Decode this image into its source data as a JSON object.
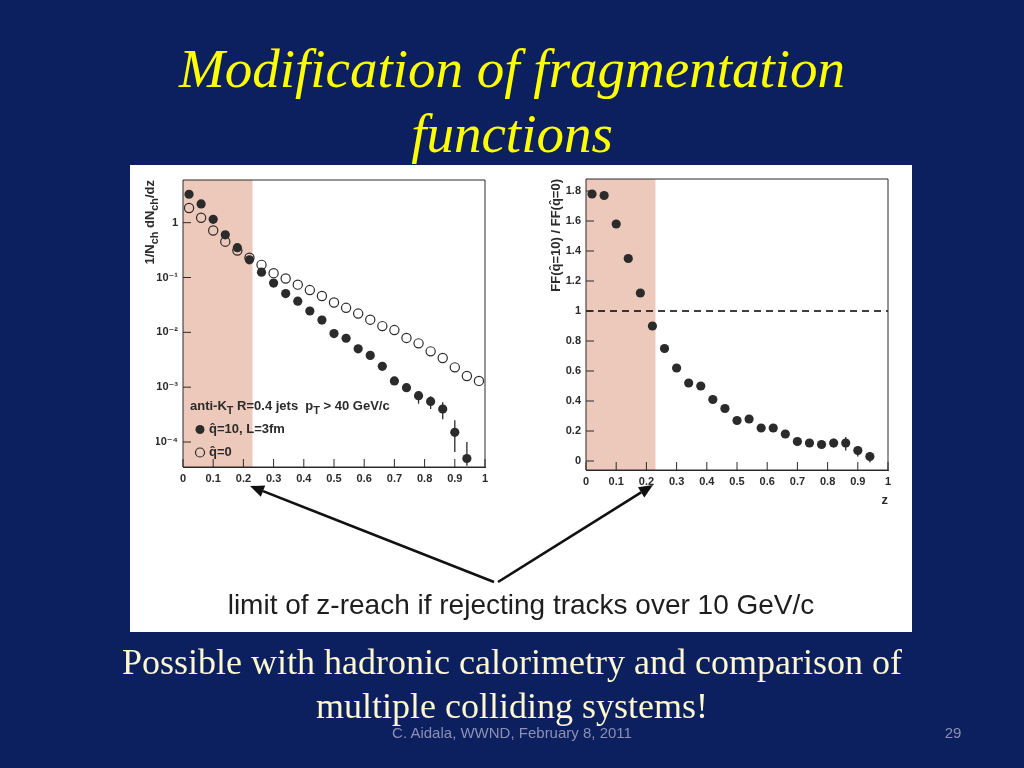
{
  "chart_data": [
    {
      "type": "scatter",
      "title": "Modification of fragmentation functions",
      "ylabel": "1/N$_{ch}$ dN$_{ch}$/dz",
      "legend_title": "anti-K$_{T}$ R=0.4 jets  p$_{T}$ > 40 GeV/c",
      "x": [
        0.02,
        0.06,
        0.1,
        0.14,
        0.18,
        0.22,
        0.26,
        0.3,
        0.34,
        0.38,
        0.42,
        0.46,
        0.5,
        0.54,
        0.58,
        0.62,
        0.66,
        0.7,
        0.74,
        0.78,
        0.82,
        0.86,
        0.9,
        0.94,
        0.98
      ],
      "series": [
        {
          "name": "q̂=10, L=3fm",
          "color": "#2b2b2b",
          "values": [
            3.3,
            2.2,
            1.15,
            0.6,
            0.35,
            0.21,
            0.125,
            0.079,
            0.051,
            0.037,
            0.0245,
            0.0167,
            0.0095,
            0.0078,
            0.005,
            0.0038,
            0.0024,
            0.0013,
            0.00098,
            0.0007,
            0.00055,
            0.0004,
            0.00015,
            5e-05,
            null
          ],
          "errors": [
            null,
            null,
            null,
            null,
            null,
            null,
            null,
            null,
            null,
            null,
            null,
            null,
            null,
            null,
            null,
            null,
            null,
            null,
            null,
            [
              0.0005,
              0.00083
            ],
            [
              0.0004,
              0.00068
            ],
            [
              0.00026,
              0.00053
            ],
            [
              6.6e-05,
              0.00025
            ],
            [
              3.7e-05,
              0.0001
            ],
            null
          ]
        },
        {
          "name": "q̂=0",
          "color": "#2b2b2b",
          "values": [
            1.85,
            1.23,
            0.72,
            0.45,
            0.31,
            0.23,
            0.17,
            0.12,
            0.096,
            0.074,
            0.059,
            0.046,
            0.035,
            0.028,
            0.022,
            0.017,
            0.013,
            0.011,
            0.0079,
            0.0063,
            0.0045,
            0.0034,
            0.0023,
            0.0016,
            0.0013
          ]
        }
      ],
      "xlim": [
        0,
        1
      ],
      "ylim": [
        3.5e-05,
        6
      ],
      "xticks": [
        0,
        0.1,
        0.2,
        0.3,
        0.4,
        0.5,
        0.6,
        0.7,
        0.8,
        0.9,
        1
      ],
      "yticks": [
        {
          "value": 0.0001,
          "label": "10⁻⁴"
        },
        {
          "value": 0.001,
          "label": "10⁻³"
        },
        {
          "value": 0.01,
          "label": "10⁻²"
        },
        {
          "value": 0.1,
          "label": "10⁻¹"
        },
        1
      ],
      "log": true,
      "legend": "bottom left",
      "marker": "circle",
      "bands": [
        {
          "axis": "x",
          "from": 0,
          "to": 0.23,
          "color": "#ecc9bb"
        }
      ],
      "annotations": [
        "limit of z-reach if rejecting tracks over 10 GeV/c",
        "Possible with hadronic calorimetry and comparison of multiple colliding systems!",
        "C. Aidala, WWND, February 8, 2011",
        "29"
      ]
    },
    {
      "type": "scatter",
      "xlabel": "z",
      "ylabel": "FF(q̂=10) / FF(q̂=0)",
      "x": [
        0.02,
        0.06,
        0.1,
        0.14,
        0.18,
        0.22,
        0.26,
        0.3,
        0.34,
        0.38,
        0.42,
        0.46,
        0.5,
        0.54,
        0.58,
        0.62,
        0.66,
        0.7,
        0.74,
        0.78,
        0.82,
        0.86,
        0.9,
        0.94
      ],
      "values": [
        1.78,
        1.77,
        1.58,
        1.35,
        1.12,
        0.9,
        0.75,
        0.62,
        0.52,
        0.5,
        0.41,
        0.35,
        0.27,
        0.28,
        0.22,
        0.22,
        0.18,
        0.13,
        0.12,
        0.11,
        0.12,
        0.12,
        0.07,
        0.03
      ],
      "errors": [
        null,
        null,
        null,
        null,
        null,
        null,
        null,
        null,
        null,
        null,
        null,
        null,
        null,
        null,
        null,
        null,
        null,
        null,
        null,
        null,
        [
          0.09,
          0.15
        ],
        [
          0.07,
          0.16
        ],
        [
          0.03,
          0.1
        ],
        [
          -0.01,
          0.06
        ]
      ],
      "color": "#2b2b2b",
      "xlim": [
        0,
        1
      ],
      "ylim": [
        -0.06,
        1.88
      ],
      "xticks": [
        0,
        0.1,
        0.2,
        0.3,
        0.4,
        0.5,
        0.6,
        0.7,
        0.8,
        0.9,
        1
      ],
      "yticks": [
        0,
        0.2,
        0.4,
        0.6,
        0.8,
        1,
        1.2,
        1.4,
        1.6,
        1.8
      ],
      "marker": "circle",
      "ref_lines": [
        {
          "axis": "y",
          "value": 1,
          "color": "#000000",
          "line_style": "dashed"
        }
      ],
      "bands": [
        {
          "axis": "x",
          "from": 0,
          "to": 0.23,
          "color": "#ecc9bb"
        }
      ]
    }
  ]
}
